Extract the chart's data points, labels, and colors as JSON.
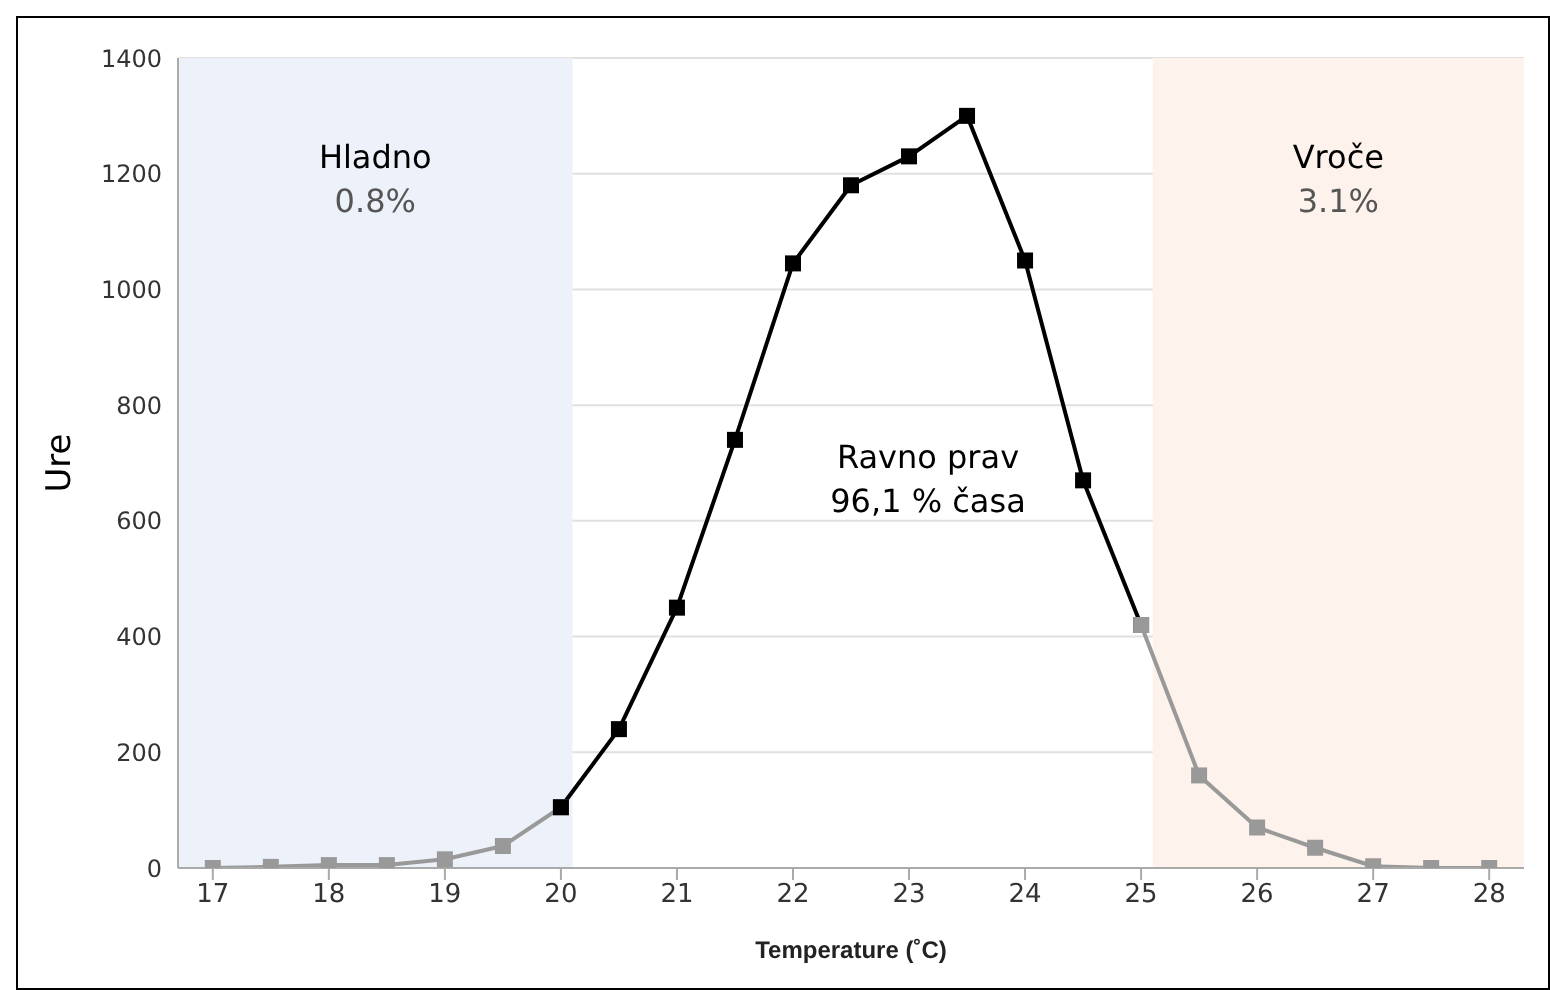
{
  "chart_data": {
    "type": "line",
    "xlabel": "Temperature (˚C)",
    "ylabel": "Ure",
    "series": [
      {
        "color": "#999999",
        "x": [
          17,
          17.5,
          18,
          18.5,
          19,
          19.5,
          20
        ],
        "values": [
          0,
          2,
          5,
          5,
          15,
          38,
          105
        ]
      },
      {
        "color": "#000000",
        "x": [
          20,
          20.5,
          21,
          21.5,
          22,
          22.5,
          23,
          23.5,
          24,
          24.5,
          25
        ],
        "values": [
          105,
          240,
          450,
          740,
          1045,
          1180,
          1230,
          1300,
          1050,
          670,
          420
        ]
      },
      {
        "color": "#999999",
        "x": [
          25,
          25.5,
          26,
          26.5,
          27,
          27.5,
          28
        ],
        "values": [
          420,
          160,
          70,
          35,
          3,
          0,
          0
        ]
      }
    ],
    "xlim": [
      16.7,
      28.3
    ],
    "xticks": [
      17,
      18,
      19,
      20,
      21,
      22,
      23,
      24,
      25,
      26,
      27,
      28
    ],
    "ylim": [
      0,
      1400
    ],
    "yticks": [
      0,
      200,
      400,
      600,
      800,
      1000,
      1200,
      1400
    ],
    "grid": "y",
    "marker": "square",
    "line_style": "solid",
    "bands": [
      {
        "axis": "x",
        "from": 16.7,
        "to": 20.1,
        "label": "Hladno\n0.8%",
        "color": "#edf2fa"
      },
      {
        "axis": "x",
        "from": 25.1,
        "to": 28.3,
        "label": "Vroče\n3.1%",
        "color": "#fdf3ec"
      }
    ],
    "annotations": [
      "Ravno prav\n96,1 % časa"
    ]
  }
}
